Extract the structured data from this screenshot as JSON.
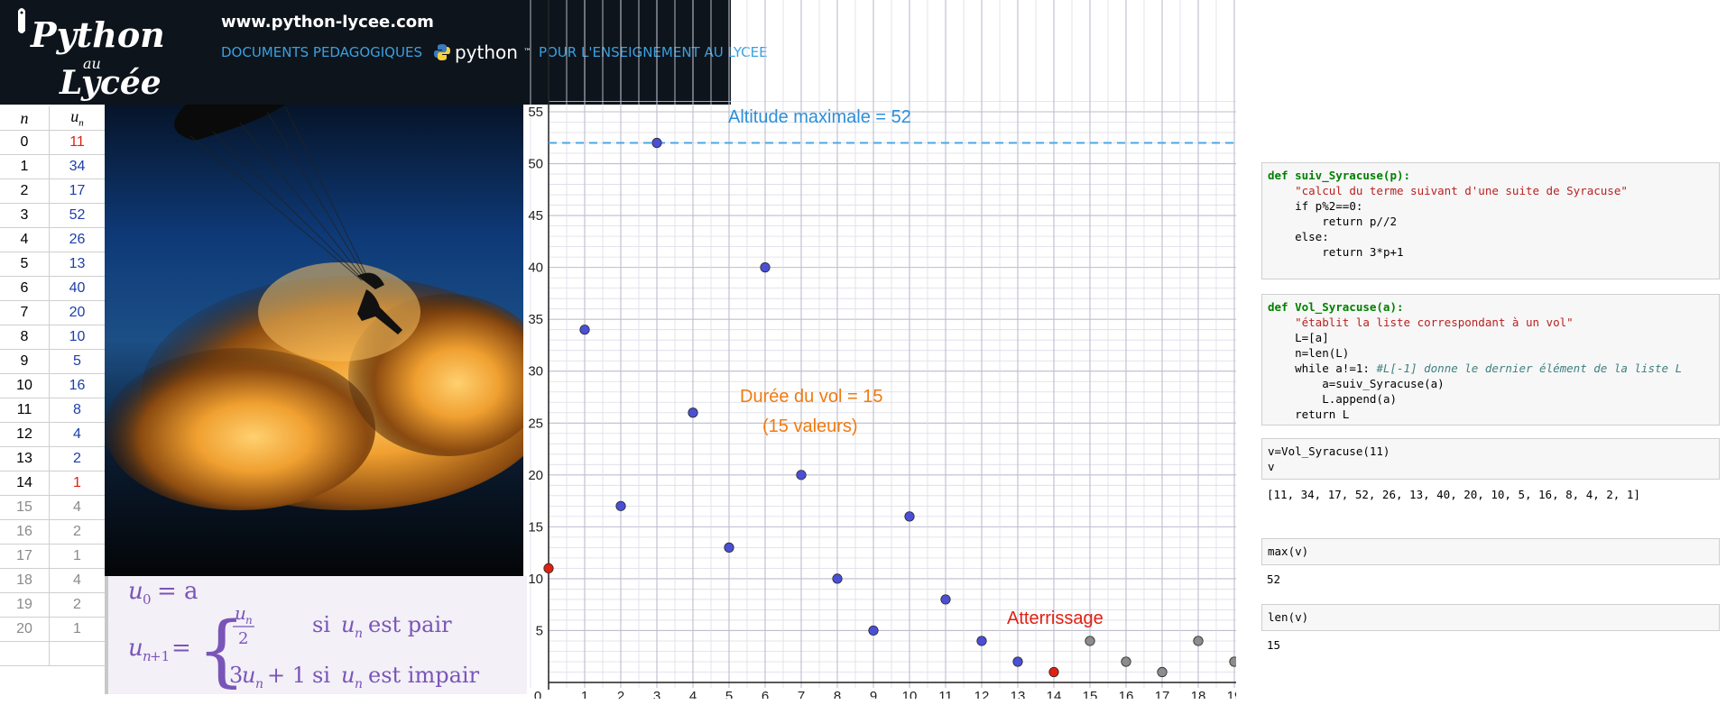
{
  "header": {
    "logo_text": "Python au Lycée",
    "url": "www.python-lycee.com",
    "tagline_left": "DOCUMENTS PEDAGOGIQUES",
    "tagline_python": "python",
    "tagline_tm": "™",
    "tagline_right": "POUR L'ENSEIGNEMENT AU LYCEE"
  },
  "table": {
    "col_n": "n",
    "col_u": "u",
    "col_u_sub": "n",
    "rows": [
      {
        "n": "0",
        "u": "11",
        "style": "red"
      },
      {
        "n": "1",
        "u": "34",
        "style": "blue"
      },
      {
        "n": "2",
        "u": "17",
        "style": "blue"
      },
      {
        "n": "3",
        "u": "52",
        "style": "blue"
      },
      {
        "n": "4",
        "u": "26",
        "style": "blue"
      },
      {
        "n": "5",
        "u": "13",
        "style": "blue"
      },
      {
        "n": "6",
        "u": "40",
        "style": "blue"
      },
      {
        "n": "7",
        "u": "20",
        "style": "blue"
      },
      {
        "n": "8",
        "u": "10",
        "style": "blue"
      },
      {
        "n": "9",
        "u": "5",
        "style": "blue"
      },
      {
        "n": "10",
        "u": "16",
        "style": "blue"
      },
      {
        "n": "11",
        "u": "8",
        "style": "blue"
      },
      {
        "n": "12",
        "u": "4",
        "style": "blue"
      },
      {
        "n": "13",
        "u": "2",
        "style": "blue"
      },
      {
        "n": "14",
        "u": "1",
        "style": "red"
      },
      {
        "n": "15",
        "u": "4",
        "style": "gray"
      },
      {
        "n": "16",
        "u": "2",
        "style": "gray"
      },
      {
        "n": "17",
        "u": "1",
        "style": "gray"
      },
      {
        "n": "18",
        "u": "4",
        "style": "gray"
      },
      {
        "n": "19",
        "u": "2",
        "style": "gray"
      },
      {
        "n": "20",
        "u": "1",
        "style": "gray"
      },
      {
        "n": "",
        "u": "",
        "style": "gray"
      }
    ]
  },
  "formula": {
    "line1": "u0 = a",
    "lhs2": "un+1 =",
    "case1_expr": "un/2",
    "case1_cond": "si un est pair",
    "case2_expr": "3un + 1",
    "case2_cond": "si un est impair"
  },
  "chart_data": {
    "type": "scatter",
    "x": [
      0,
      1,
      2,
      3,
      4,
      5,
      6,
      7,
      8,
      9,
      10,
      11,
      12,
      13,
      14,
      15,
      16,
      17,
      18,
      19
    ],
    "y": [
      11,
      34,
      17,
      52,
      26,
      13,
      40,
      20,
      10,
      5,
      16,
      8,
      4,
      2,
      1,
      4,
      2,
      1,
      4,
      2
    ],
    "point_colors": [
      "red",
      "blue",
      "blue",
      "blue",
      "blue",
      "blue",
      "blue",
      "blue",
      "blue",
      "blue",
      "blue",
      "blue",
      "blue",
      "blue",
      "red",
      "gray",
      "gray",
      "gray",
      "gray",
      "gray"
    ],
    "xlim": [
      0,
      19
    ],
    "ylim": [
      0,
      55
    ],
    "x_ticks": [
      "0",
      "1",
      "2",
      "3",
      "4",
      "5",
      "6",
      "7",
      "8",
      "9",
      "10",
      "11",
      "12",
      "13",
      "14",
      "15",
      "16",
      "17",
      "18",
      "19"
    ],
    "y_ticks": [
      "5",
      "10",
      "15",
      "20",
      "25",
      "30",
      "35",
      "40",
      "45",
      "50",
      "55"
    ],
    "grid": true,
    "hline_y": 52,
    "annotations": {
      "altitude": "Altitude maximale = 52",
      "duree": "Durée du vol = 15",
      "valeurs": "(15 valeurs)",
      "atterrissage": "Atterrissage"
    },
    "colors": {
      "blue": "#4b4fd6",
      "red": "#e02010",
      "gray": "#8c8c8c",
      "hline": "#4aa8e8",
      "altitude_text": "#2b8fd8",
      "duree_text": "#ef7b10",
      "atterrissage_text": "#e02010"
    }
  },
  "notebook": {
    "cell1": [
      "def suiv_Syracuse(p):",
      "\"calcul du terme suivant d'une suite de Syracuse\"",
      "if p%2==0:",
      "return p//2",
      "else:",
      "return 3*p+1"
    ],
    "cell2": [
      "def Vol_Syracuse(a):",
      "\"établit la liste correspondant à un vol\"",
      "L=[a]",
      "n=len(L)",
      "while a!=1:",
      "#L[-1] donne le dernier élément de la liste L",
      "a=suiv_Syracuse(a)",
      "L.append(a)",
      "return L"
    ],
    "cell3": [
      "v=Vol_Syracuse(11)",
      "v"
    ],
    "out3": "[11, 34, 17, 52, 26, 13, 40, 20, 10, 5, 16, 8, 4, 2, 1]",
    "cell4": "max(v)",
    "out4": "52",
    "cell5": "len(v)",
    "out5": "15"
  }
}
